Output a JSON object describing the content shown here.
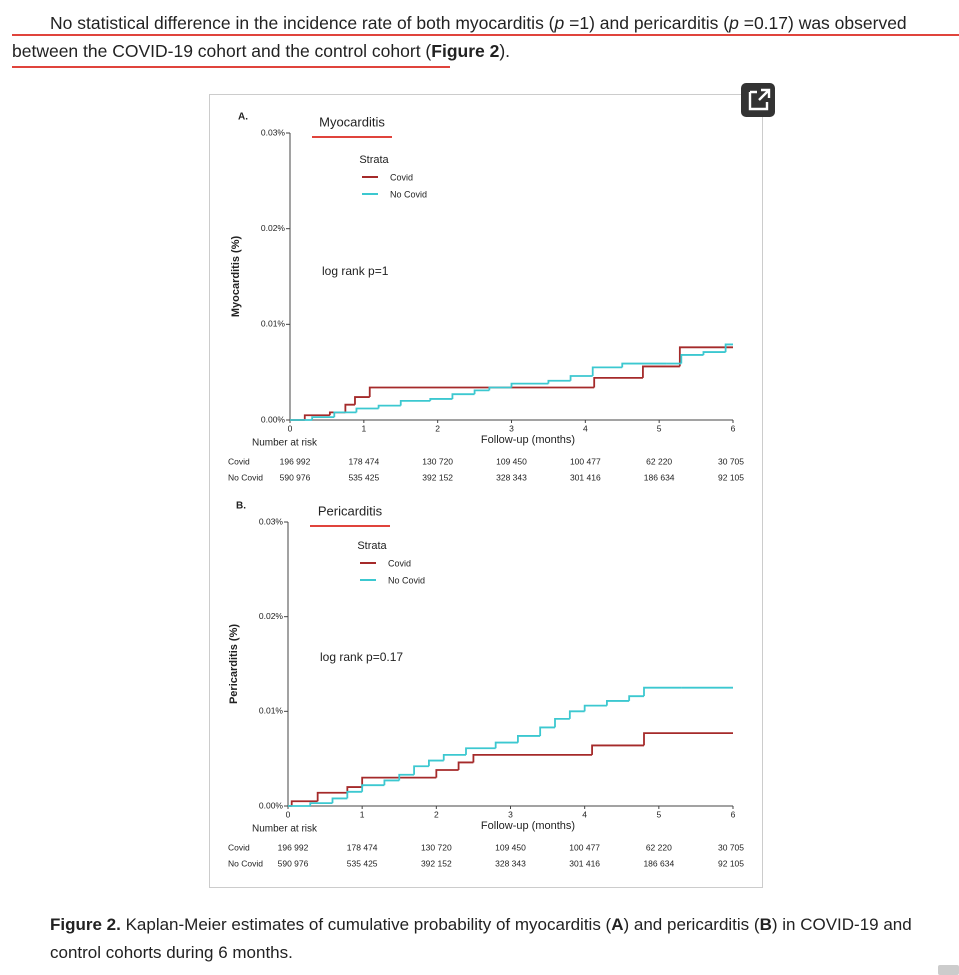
{
  "paragraph": [
    "No statistical difference in the incidence rate of both myocarditis (",
    "p",
    " =1) and pericarditis (",
    "p",
    " =0.17) was observed between the COVID-19 cohort and the control cohort (",
    "Figure 2",
    ")."
  ],
  "caption": [
    "Figure 2.",
    " Kaplan-Meier estimates of cumulative probability of myocarditis (",
    "A",
    ") and pericarditis (",
    "B",
    ") in COVID-19 and control cohorts during 6 months."
  ],
  "chart_data": [
    {
      "type": "line",
      "panel": "A.",
      "title": "Myocarditis",
      "y_label": "Myocarditis (%)",
      "x_label": "Follow-up (months)",
      "legend_title": "Strata",
      "annotation": "log rank p=1",
      "xlim": [
        0,
        6
      ],
      "xticks": [
        0,
        1,
        2,
        3,
        4,
        5,
        6
      ],
      "ylim": [
        0,
        0.03
      ],
      "yticks": [
        {
          "value": 0,
          "label": "0.00%"
        },
        {
          "value": 0.01,
          "label": "0.01%"
        },
        {
          "value": 0.02,
          "label": "0.02%"
        },
        {
          "value": 0.03,
          "label": "0.03%"
        }
      ],
      "series": [
        {
          "name": "Covid",
          "color": "#a52a2a",
          "x": [
            0,
            0.2,
            0.54,
            0.75,
            0.88,
            1.08,
            4.12,
            4.78,
            5.28,
            6
          ],
          "values": [
            0,
            0.0005,
            0.0008,
            0.0016,
            0.0024,
            0.0034,
            0.0044,
            0.0056,
            0.0076,
            0.0076
          ]
        },
        {
          "name": "No Covid",
          "color": "#3cc8d0",
          "x": [
            0,
            0.3,
            0.6,
            0.9,
            1.2,
            1.5,
            1.9,
            2.2,
            2.5,
            2.7,
            3.0,
            3.5,
            3.8,
            4.1,
            4.5,
            5.1,
            5.3,
            5.6,
            5.9,
            6
          ],
          "values": [
            0,
            0.0003,
            0.0008,
            0.0012,
            0.0015,
            0.002,
            0.0022,
            0.0027,
            0.0031,
            0.0034,
            0.0038,
            0.0041,
            0.0046,
            0.0055,
            0.0059,
            0.0059,
            0.0068,
            0.0071,
            0.0079,
            0.0079
          ]
        }
      ],
      "risk_table": {
        "title": "Number at risk",
        "rows": [
          {
            "name": "Covid",
            "values": [
              "196 992",
              "178 474",
              "130 720",
              "109 450",
              "100 477",
              "62 220",
              "30 705"
            ]
          },
          {
            "name": "No Covid",
            "values": [
              "590 976",
              "535 425",
              "392 152",
              "328 343",
              "301 416",
              "186 634",
              "92 105"
            ]
          }
        ]
      }
    },
    {
      "type": "line",
      "panel": "B.",
      "title": "Pericarditis",
      "y_label": "Pericarditis (%)",
      "x_label": "Follow-up (months)",
      "legend_title": "Strata",
      "annotation": "log rank p=0.17",
      "xlim": [
        0,
        6
      ],
      "xticks": [
        0,
        1,
        2,
        3,
        4,
        5,
        6
      ],
      "ylim": [
        0,
        0.03
      ],
      "yticks": [
        {
          "value": 0,
          "label": "0.00%"
        },
        {
          "value": 0.01,
          "label": "0.01%"
        },
        {
          "value": 0.02,
          "label": "0.02%"
        },
        {
          "value": 0.03,
          "label": "0.03%"
        }
      ],
      "series": [
        {
          "name": "Covid",
          "color": "#a52a2a",
          "x": [
            0,
            0.05,
            0.4,
            0.8,
            1.0,
            2.0,
            2.3,
            2.5,
            4.1,
            4.8,
            6
          ],
          "values": [
            0,
            0.0005,
            0.0014,
            0.002,
            0.003,
            0.0038,
            0.0046,
            0.0054,
            0.0064,
            0.0077,
            0.0077
          ]
        },
        {
          "name": "No Covid",
          "color": "#3cc8d0",
          "x": [
            0,
            0.3,
            0.6,
            0.8,
            1.0,
            1.3,
            1.5,
            1.7,
            1.9,
            2.1,
            2.4,
            2.8,
            3.1,
            3.4,
            3.6,
            3.8,
            4.0,
            4.3,
            4.6,
            4.8,
            5.3,
            6
          ],
          "values": [
            0,
            0.0003,
            0.0008,
            0.0015,
            0.0022,
            0.0027,
            0.0033,
            0.0042,
            0.0048,
            0.0054,
            0.0061,
            0.0067,
            0.0074,
            0.0083,
            0.0092,
            0.01,
            0.0106,
            0.0111,
            0.0116,
            0.0125,
            0.0125,
            0.0125
          ]
        }
      ],
      "risk_table": {
        "title": "Number at risk",
        "rows": [
          {
            "name": "Covid",
            "values": [
              "196 992",
              "178 474",
              "130 720",
              "109 450",
              "100 477",
              "62 220",
              "30 705"
            ]
          },
          {
            "name": "No Covid",
            "values": [
              "590 976",
              "535 425",
              "392 152",
              "328 343",
              "301 416",
              "186 634",
              "92 105"
            ]
          }
        ]
      }
    }
  ]
}
